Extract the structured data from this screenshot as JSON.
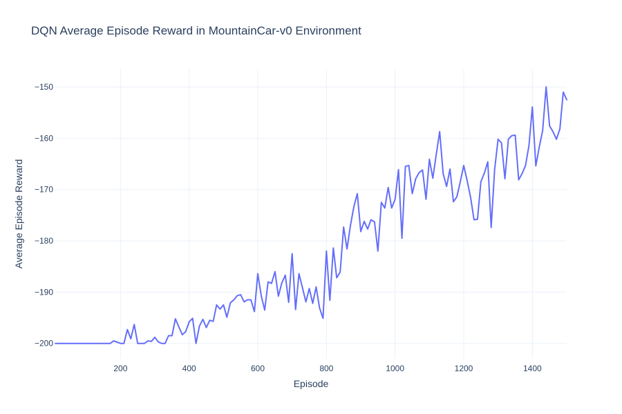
{
  "chart_data": {
    "type": "line",
    "title": "DQN Average Episode Reward in MountainCar-v0 Environment",
    "xlabel": "Episode",
    "ylabel": "Average Episode Reward",
    "xlim": [
      10,
      1500
    ],
    "ylim": [
      -203,
      -146.5
    ],
    "x_ticks": [
      200,
      400,
      600,
      800,
      1000,
      1200,
      1400
    ],
    "y_ticks": [
      -200,
      -190,
      -180,
      -170,
      -160,
      -150
    ],
    "x_tick_labels": [
      "200",
      "400",
      "600",
      "800",
      "1000",
      "1200",
      "1400"
    ],
    "y_tick_labels": [
      "−200",
      "−190",
      "−180",
      "−170",
      "−160",
      "−150"
    ],
    "grid": true,
    "legend": false,
    "series": [
      {
        "color": "#636efa",
        "x": [
          10,
          170,
          180,
          200,
          210,
          220,
          230,
          240,
          250,
          260,
          270,
          280,
          290,
          300,
          310,
          320,
          330,
          340,
          350,
          360,
          370,
          380,
          390,
          400,
          410,
          420,
          430,
          440,
          450,
          460,
          470,
          480,
          490,
          500,
          510,
          520,
          530,
          540,
          550,
          560,
          570,
          580,
          590,
          600,
          610,
          620,
          630,
          640,
          650,
          660,
          670,
          680,
          690,
          700,
          710,
          720,
          730,
          740,
          750,
          760,
          770,
          780,
          790,
          800,
          810,
          820,
          830,
          840,
          850,
          860,
          870,
          880,
          890,
          900,
          910,
          920,
          930,
          940,
          950,
          960,
          970,
          980,
          990,
          1000,
          1010,
          1020,
          1030,
          1040,
          1050,
          1060,
          1070,
          1080,
          1090,
          1100,
          1110,
          1120,
          1130,
          1140,
          1150,
          1160,
          1170,
          1180,
          1190,
          1200,
          1210,
          1220,
          1230,
          1240,
          1250,
          1260,
          1270,
          1280,
          1290,
          1300,
          1310,
          1320,
          1330,
          1340,
          1350,
          1360,
          1370,
          1380,
          1390,
          1400,
          1410,
          1420,
          1430,
          1440,
          1450,
          1460,
          1470,
          1480,
          1490,
          1500
        ],
        "y": [
          -200,
          -200,
          -199.5,
          -200,
          -200,
          -197.3,
          -199.1,
          -196.3,
          -200,
          -200,
          -200,
          -199.5,
          -199.6,
          -198.8,
          -199.7,
          -200,
          -200,
          -198.5,
          -198.5,
          -195.2,
          -196.8,
          -198.3,
          -197.7,
          -195.8,
          -195.1,
          -200,
          -196.6,
          -195.3,
          -196.9,
          -195.5,
          -195.7,
          -192.5,
          -193.3,
          -192.5,
          -194.9,
          -192.1,
          -191.5,
          -190.7,
          -190.5,
          -191.9,
          -191.5,
          -191.5,
          -193.8,
          -186.4,
          -190.7,
          -193.5,
          -188,
          -188.3,
          -186,
          -190.8,
          -188.2,
          -186.7,
          -192,
          -182.5,
          -193.4,
          -186.4,
          -189.1,
          -191.9,
          -189.3,
          -192.2,
          -189,
          -193.1,
          -195.1,
          -182,
          -191.6,
          -181.4,
          -187.2,
          -186.1,
          -177.3,
          -181.6,
          -177,
          -173.3,
          -170.8,
          -178.2,
          -176.2,
          -177.7,
          -175.9,
          -176.3,
          -182,
          -172.5,
          -173.6,
          -169.6,
          -173.6,
          -171.9,
          -166.1,
          -179.5,
          -165.5,
          -165.3,
          -170.8,
          -167.9,
          -166.7,
          -166.2,
          -171.9,
          -164.1,
          -167.8,
          -163.1,
          -158.7,
          -166.9,
          -169.4,
          -166,
          -172.4,
          -171.4,
          -168.5,
          -165.3,
          -168.3,
          -171.5,
          -175.9,
          -175.8,
          -168.5,
          -166.8,
          -164.6,
          -177.4,
          -166.1,
          -160.2,
          -160.9,
          -167.9,
          -160.2,
          -159.5,
          -159.4,
          -168.1,
          -166.9,
          -165.3,
          -161.4,
          -153.9,
          -165.4,
          -161.7,
          -158.5,
          -150,
          -157.6,
          -158.7,
          -160.2,
          -158.2,
          -151,
          -152.5
        ]
      }
    ]
  }
}
